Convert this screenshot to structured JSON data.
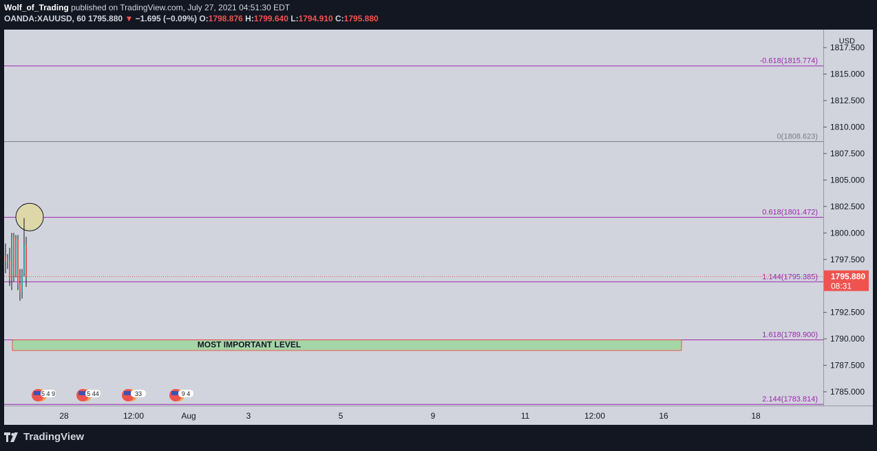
{
  "header": {
    "author": "Wolf_of_Trading",
    "published_text": "published on TradingView.com, July 27, 2021 04:51:30 EDT",
    "symbol": "OANDA:XAUUSD, 60",
    "last_price": "1795.880",
    "change": "−1.695 (−0.09%)",
    "open_label": "O:",
    "open": "1798.876",
    "high_label": "H:",
    "high": "1799.640",
    "low_label": "L:",
    "low": "1794.910",
    "close_label": "C:",
    "close": "1795.880"
  },
  "footer": {
    "brand": "TradingView"
  },
  "colors": {
    "background": "#d1d4dc",
    "frame": "#131722",
    "fib_line": "#9c27b0",
    "fib_zero": "#787b86",
    "price_line": "#ef5350",
    "zone_fill": "#a5d6a7",
    "zone_border": "#ef5350",
    "circle_fill": "#ded7a8",
    "candle_up": "#26a69a",
    "candle_down": "#ef5350"
  },
  "chart_data": {
    "type": "candlestick",
    "currency": "USD",
    "ylim": [
      1783.7,
      1819.2
    ],
    "y_ticks": [
      "1817.500",
      "1815.000",
      "1812.500",
      "1810.000",
      "1807.500",
      "1805.000",
      "1802.500",
      "1800.000",
      "1797.500",
      "1792.500",
      "1790.000",
      "1787.500",
      "1785.000"
    ],
    "x_ticks": [
      "28",
      "12:00",
      "Aug",
      "3",
      "5",
      "9",
      "11",
      "12:00",
      "16",
      "18"
    ],
    "fib_levels": [
      {
        "ratio": "-0.618",
        "price": 1815.774,
        "label": "-0.618(1815.774)"
      },
      {
        "ratio": "0",
        "price": 1808.623,
        "label": "0(1808.623)"
      },
      {
        "ratio": "0.618",
        "price": 1801.472,
        "label": "0.618(1801.472)"
      },
      {
        "ratio": "1.144",
        "price": 1795.385,
        "label": "1.144(1795.385)"
      },
      {
        "ratio": "1.618",
        "price": 1789.9,
        "label": "1.618(1789.900)"
      },
      {
        "ratio": "2.144",
        "price": 1783.814,
        "label": "2.144(1783.814)"
      }
    ],
    "current_price": {
      "value": 1795.88,
      "label": "1795.880",
      "countdown": "08:31"
    },
    "zone": {
      "label": "MOST IMPORTANT LEVEL",
      "top": 1789.9,
      "bottom": 1788.9
    },
    "highlight_circle_price": 1801.5,
    "candles": [
      {
        "o": 1797.8,
        "h": 1799.0,
        "l": 1796.2,
        "c": 1797.2
      },
      {
        "o": 1797.2,
        "h": 1798.0,
        "l": 1796.6,
        "c": 1797.6
      },
      {
        "o": 1797.4,
        "h": 1798.6,
        "l": 1795.0,
        "c": 1795.6
      },
      {
        "o": 1795.6,
        "h": 1800.0,
        "l": 1794.6,
        "c": 1799.6
      },
      {
        "o": 1799.6,
        "h": 1800.0,
        "l": 1795.4,
        "c": 1796.0
      },
      {
        "o": 1796.0,
        "h": 1799.8,
        "l": 1795.8,
        "c": 1799.4
      },
      {
        "o": 1799.4,
        "h": 1799.8,
        "l": 1794.6,
        "c": 1795.2
      },
      {
        "o": 1795.2,
        "h": 1796.6,
        "l": 1793.6,
        "c": 1794.4
      },
      {
        "o": 1794.4,
        "h": 1796.6,
        "l": 1793.8,
        "c": 1796.2
      },
      {
        "o": 1796.2,
        "h": 1801.4,
        "l": 1795.9,
        "c": 1798.9
      },
      {
        "o": 1798.9,
        "h": 1799.64,
        "l": 1794.91,
        "c": 1795.88
      }
    ],
    "events": [
      {
        "label": "5 4 9"
      },
      {
        "label": "5 44"
      },
      {
        "label": "33"
      },
      {
        "label": "9 4"
      }
    ]
  }
}
